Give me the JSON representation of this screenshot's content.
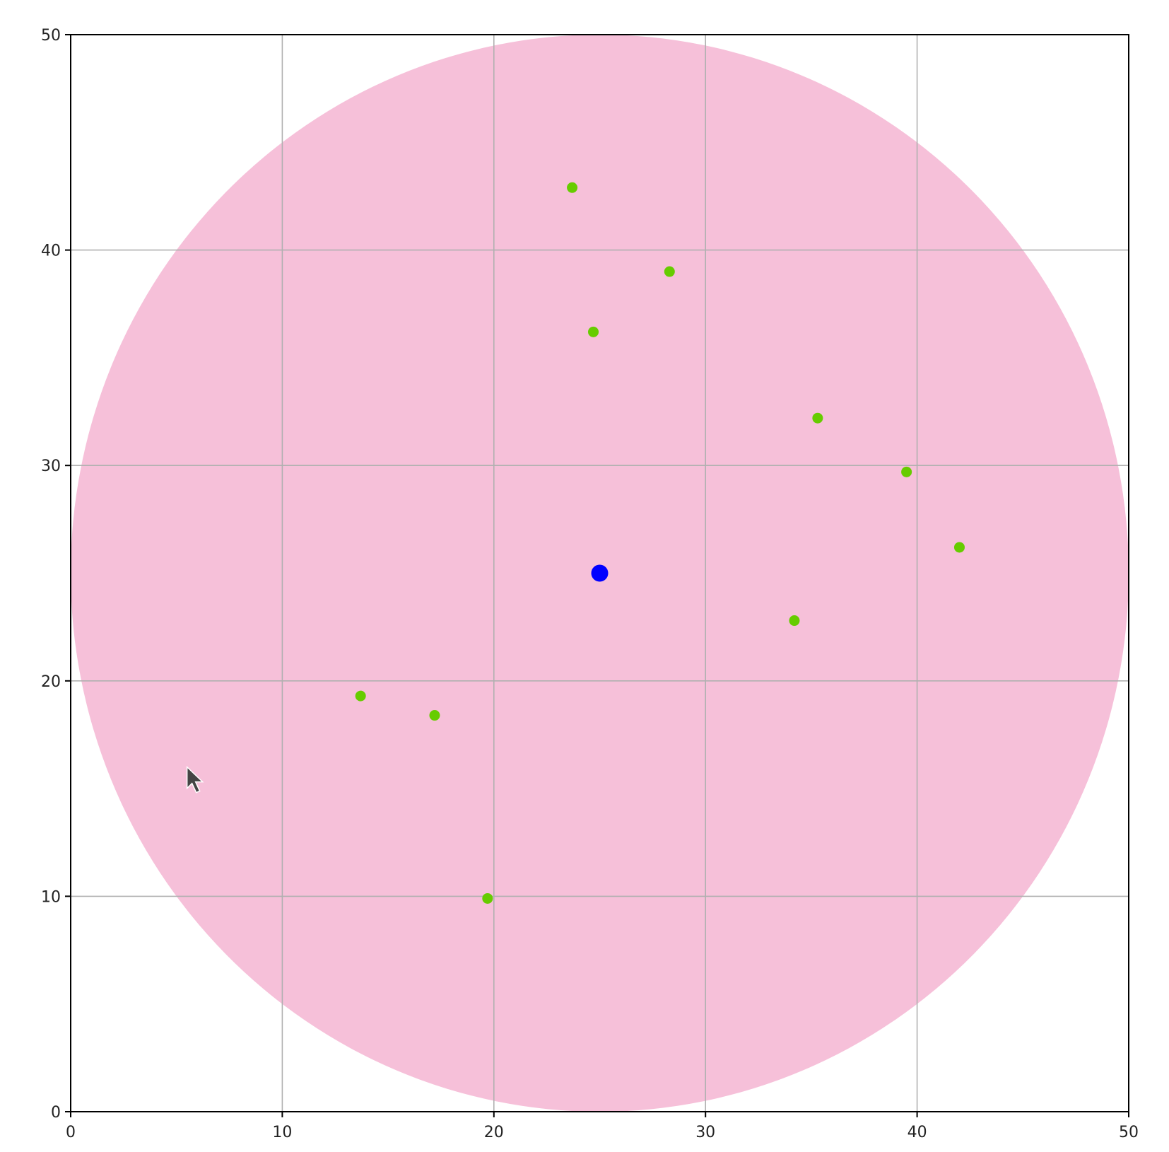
{
  "chart_data": {
    "type": "scatter",
    "title": "",
    "xlabel": "",
    "ylabel": "",
    "xlim": [
      0,
      50
    ],
    "ylim": [
      0,
      50
    ],
    "grid": true,
    "x_ticks": [
      "0",
      "10",
      "20",
      "30",
      "40",
      "50"
    ],
    "y_ticks": [
      "0",
      "10",
      "20",
      "30",
      "40",
      "50"
    ],
    "region": {
      "shape": "circle",
      "center": [
        25,
        25
      ],
      "radius": 25,
      "color": "#f6c0d9"
    },
    "center_point": {
      "x": 25,
      "y": 25,
      "color": "#0000ff"
    },
    "points": {
      "color": "#66cc00",
      "x": [
        23.7,
        28.3,
        24.7,
        35.3,
        39.5,
        42.0,
        34.2,
        13.7,
        17.2,
        19.7
      ],
      "y": [
        42.9,
        39.0,
        36.2,
        32.2,
        29.7,
        26.2,
        22.8,
        19.3,
        18.4,
        9.9
      ]
    },
    "cursor": {
      "x": 5.5,
      "y": 16.0
    },
    "colors": {
      "axis": "#000000",
      "grid": "#b0b0b0"
    }
  }
}
